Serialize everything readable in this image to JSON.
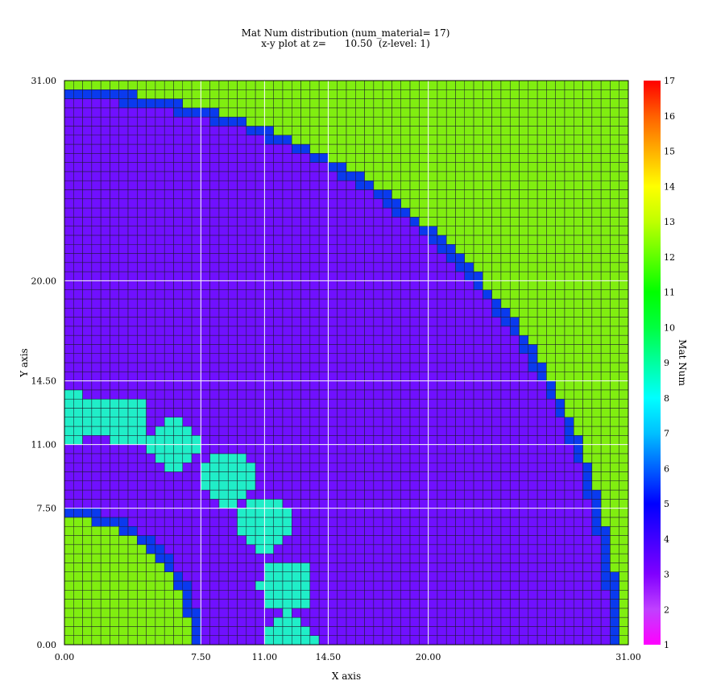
{
  "chart_data": {
    "type": "heatmap",
    "title": "Mat Num distribution (num_material= 17)",
    "subtitle": "x-y plot at z=      10.50  (z-level: 1)",
    "xlabel": "X axis",
    "ylabel": "Y axis",
    "xlim": [
      0,
      31
    ],
    "ylim": [
      0,
      31
    ],
    "x_ticks": [
      "0.00",
      "7.50",
      "11.00",
      "14.50",
      "20.00",
      "31.00"
    ],
    "x_tick_values": [
      0,
      7.5,
      11,
      14.5,
      20,
      31
    ],
    "y_ticks": [
      "0.00",
      "7.50",
      "11.00",
      "14.50",
      "20.00",
      "31.00"
    ],
    "y_tick_values": [
      0,
      7.5,
      11,
      14.5,
      20,
      31
    ],
    "colorbar_label": "Mat Num",
    "colorbar_range": [
      1,
      17
    ],
    "colorbar_ticks": [
      "1",
      "2",
      "3",
      "4",
      "5",
      "6",
      "7",
      "8",
      "9",
      "10",
      "11",
      "12",
      "13",
      "14",
      "15",
      "16",
      "17"
    ],
    "materials": {
      "outer_region": 12,
      "moderator": 3,
      "boundary_layer": 4,
      "fuel_pins": 8
    },
    "regions": {
      "outer_arc_center": [
        0,
        0
      ],
      "outer_arc_radius": 30.5,
      "inner_arc_center": [
        0,
        0
      ],
      "inner_arc_radius": 7.5,
      "boundary_thickness": 0.6
    },
    "fuel_pins": [
      {
        "x": 0.6,
        "y": 12.5,
        "r": 1.4
      },
      {
        "x": 3.3,
        "y": 12.3,
        "r": 1.45
      },
      {
        "x": 6.0,
        "y": 11.0,
        "r": 1.45
      },
      {
        "x": 9.0,
        "y": 9.2,
        "r": 1.5
      },
      {
        "x": 11.0,
        "y": 6.7,
        "r": 1.5
      },
      {
        "x": 12.2,
        "y": 3.2,
        "r": 1.5
      },
      {
        "x": 12.4,
        "y": 0.0,
        "r": 1.5
      }
    ],
    "grid": true
  }
}
